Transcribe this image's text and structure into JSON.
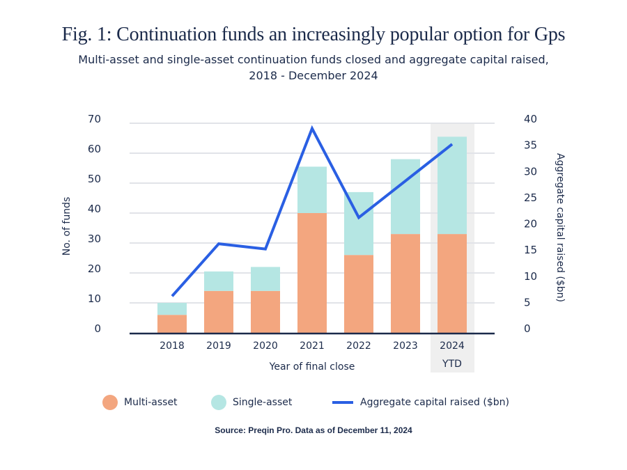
{
  "title": "Fig. 1: Continuation funds an increasingly popular option for Gps",
  "subtitle_line1": "Multi-asset and single-asset continuation funds closed and aggregate capital raised,",
  "subtitle_line2": "2018 - December 2024",
  "source": "Source: Preqin Pro. Data as of December 11, 2024",
  "colors": {
    "multi_asset": "#f3a67f",
    "single_asset": "#b5e6e3",
    "line": "#2a5fe3",
    "highlight_bg": "#efefef",
    "grid": "#e1e3e8",
    "axis": "#1b2a4a"
  },
  "legend": [
    {
      "label": "Multi-asset",
      "type": "dot",
      "color": "#f3a67f"
    },
    {
      "label": "Single-asset",
      "type": "dot",
      "color": "#b5e6e3"
    },
    {
      "label": "Aggregate capital raised ($bn)",
      "type": "line",
      "color": "#2a5fe3"
    }
  ],
  "chart_data": {
    "type": "bar",
    "stacked": true,
    "title": "Fig. 1: Continuation funds an increasingly popular option for Gps",
    "xlabel": "Year of final close",
    "ylabel": "No. of funds",
    "y2label": "Aggregate capital raised ($bn)",
    "categories": [
      "2018",
      "2019",
      "2020",
      "2021",
      "2022",
      "2023",
      "2024 YTD"
    ],
    "category_lines": [
      [
        "2018"
      ],
      [
        "2019"
      ],
      [
        "2020"
      ],
      [
        "2021"
      ],
      [
        "2022"
      ],
      [
        "2023"
      ],
      [
        "2024",
        "YTD"
      ]
    ],
    "highlight_category": "2024 YTD",
    "ylim": [
      0,
      70
    ],
    "yticks": [
      0,
      10,
      20,
      30,
      40,
      50,
      60,
      70
    ],
    "y2lim": [
      0,
      40
    ],
    "y2ticks": [
      0,
      5,
      10,
      15,
      20,
      25,
      30,
      35,
      40
    ],
    "grid": true,
    "legend_position": "bottom",
    "series": [
      {
        "name": "Multi-asset",
        "type": "bar",
        "axis": "left",
        "values": [
          6,
          14,
          14,
          40,
          26,
          33,
          33
        ]
      },
      {
        "name": "Single-asset",
        "type": "bar",
        "axis": "left",
        "values": [
          4,
          6.5,
          8,
          15.5,
          21,
          25,
          32.5
        ]
      },
      {
        "name": "Aggregate capital raised ($bn)",
        "type": "line",
        "axis": "right",
        "values": [
          7,
          17,
          16,
          39,
          22,
          29,
          36
        ]
      }
    ]
  }
}
